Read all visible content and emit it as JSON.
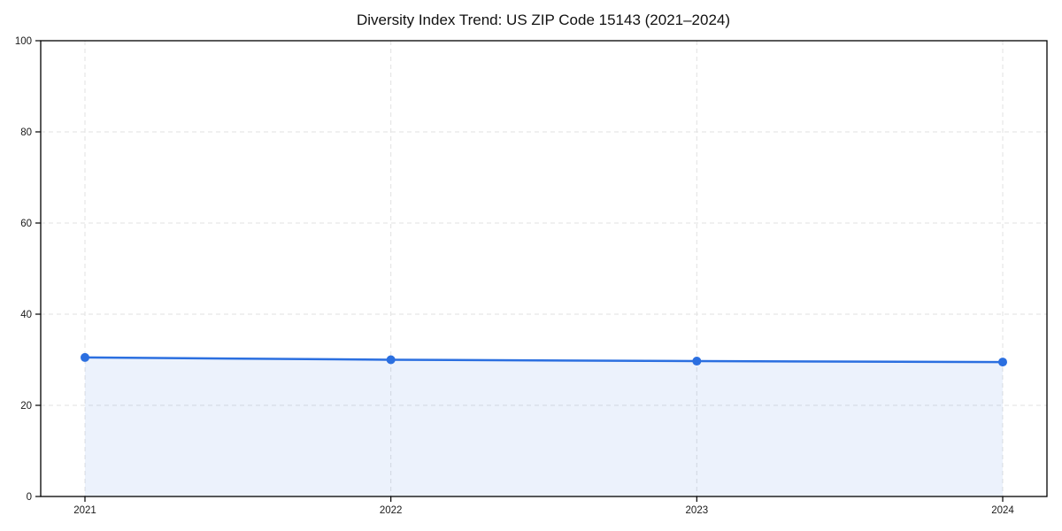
{
  "title": "Diversity Index Trend: US ZIP Code 15143 (2021–2024)",
  "chart_data": {
    "type": "area",
    "title": "Diversity Index Trend: US ZIP Code 15143 (2021–2024)",
    "categories": [
      "2021",
      "2022",
      "2023",
      "2024"
    ],
    "values": [
      30.5,
      30.0,
      29.7,
      29.5
    ],
    "series": [
      {
        "name": "Diversity Index",
        "values": [
          30.5,
          30.0,
          29.7,
          29.5
        ]
      }
    ],
    "xlabel": "",
    "ylabel": "",
    "ylim": [
      0,
      100
    ],
    "yticks": [
      0,
      20,
      40,
      60,
      80,
      100
    ],
    "grid": "dashed, light gray, horizontal and vertical",
    "legend_position": "none",
    "marker": "filled-circle"
  },
  "colors": {
    "line": "#2b6fe0",
    "marker": "#2b6fe0",
    "area_fill": "rgba(43,111,224,0.09)",
    "gridline": "#e2e2e2",
    "spine": "#000000",
    "tick_text": "#1a1a1a",
    "title_text": "#111111",
    "background": "#ffffff"
  }
}
